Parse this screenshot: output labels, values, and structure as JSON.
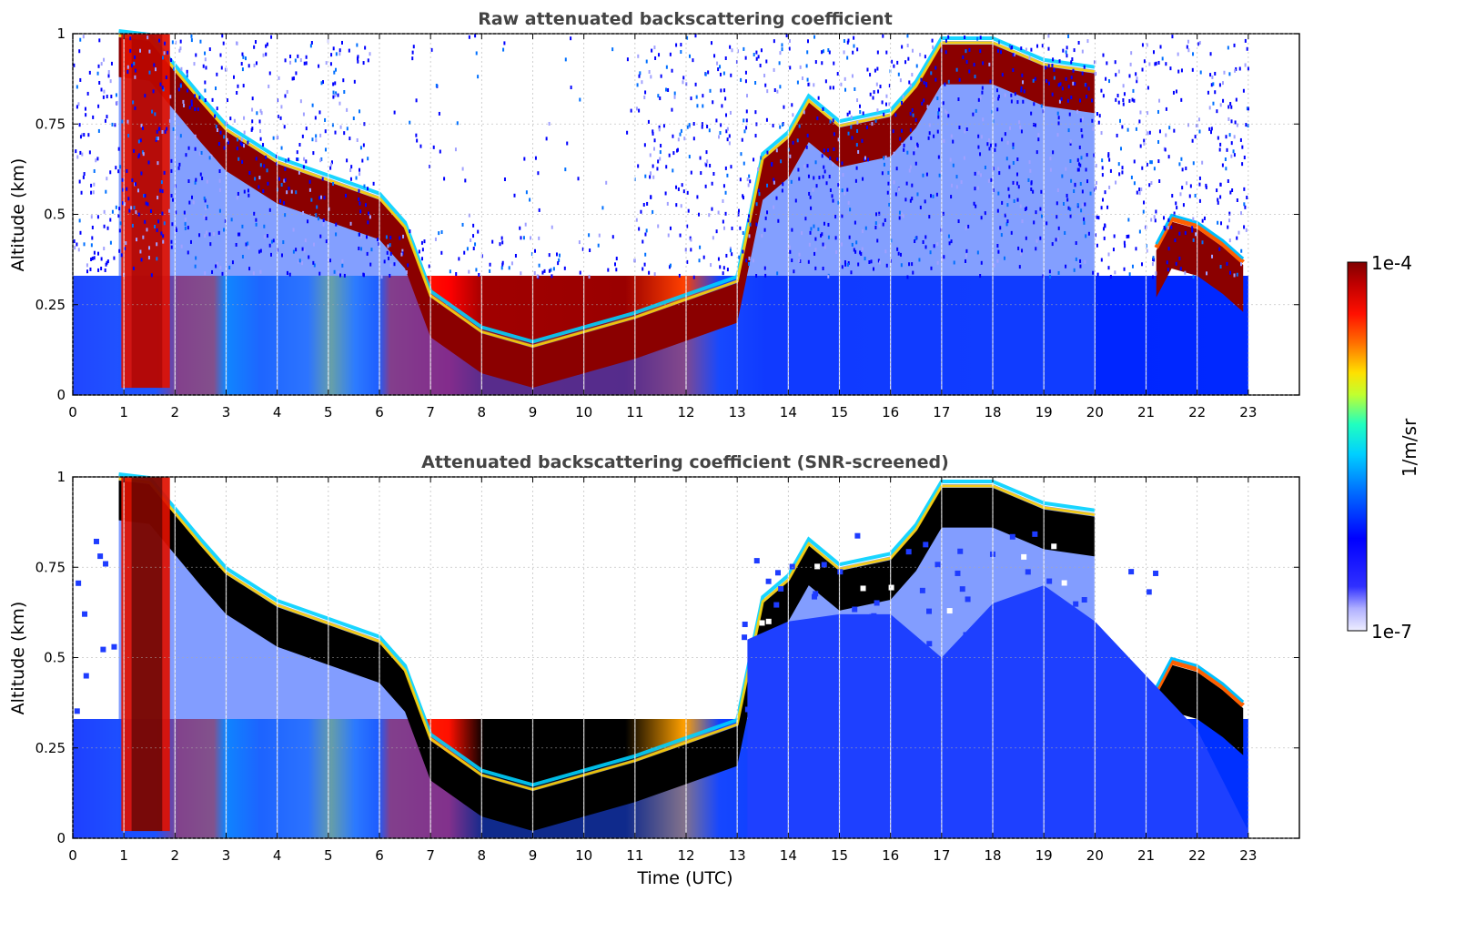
{
  "chart_data": [
    {
      "type": "heatmap",
      "title": "Raw attenuated backscattering coefficient",
      "xlabel": "",
      "ylabel": "Altitude (km)",
      "xlim": [
        0,
        24
      ],
      "ylim": [
        0,
        1
      ],
      "xticks": [
        "0",
        "1",
        "2",
        "3",
        "4",
        "5",
        "6",
        "7",
        "8",
        "9",
        "10",
        "11",
        "12",
        "13",
        "14",
        "15",
        "16",
        "17",
        "18",
        "19",
        "20",
        "21",
        "22",
        "23"
      ],
      "yticks": [
        "0",
        "0.25",
        "0.5",
        "0.75",
        "1"
      ],
      "grid": true,
      "data_end_hour": 23,
      "layer_top_km": [
        {
          "t": 0.9,
          "z": 1.0
        },
        {
          "t": 1.5,
          "z": 0.99
        },
        {
          "t": 2.5,
          "z": 0.82
        },
        {
          "t": 3.0,
          "z": 0.74
        },
        {
          "t": 4.0,
          "z": 0.65
        },
        {
          "t": 5.0,
          "z": 0.6
        },
        {
          "t": 6.0,
          "z": 0.55
        },
        {
          "t": 6.5,
          "z": 0.47
        },
        {
          "t": 7.0,
          "z": 0.28
        },
        {
          "t": 8.0,
          "z": 0.18
        },
        {
          "t": 9.0,
          "z": 0.14
        },
        {
          "t": 10.0,
          "z": 0.18
        },
        {
          "t": 11.0,
          "z": 0.22
        },
        {
          "t": 12.0,
          "z": 0.27
        },
        {
          "t": 13.0,
          "z": 0.32
        },
        {
          "t": 13.5,
          "z": 0.66
        },
        {
          "t": 14.0,
          "z": 0.72
        },
        {
          "t": 14.4,
          "z": 0.82
        },
        {
          "t": 15.0,
          "z": 0.75
        },
        {
          "t": 16.0,
          "z": 0.78
        },
        {
          "t": 16.5,
          "z": 0.86
        },
        {
          "t": 17.0,
          "z": 0.98
        },
        {
          "t": 18.0,
          "z": 0.98
        },
        {
          "t": 19.0,
          "z": 0.92
        },
        {
          "t": 20.0,
          "z": 0.9
        }
      ],
      "evening_layer_km": [
        {
          "t": 21.2,
          "z": 0.4
        },
        {
          "t": 21.5,
          "z": 0.48
        },
        {
          "t": 22.0,
          "z": 0.46
        },
        {
          "t": 22.5,
          "z": 0.41
        },
        {
          "t": 22.9,
          "z": 0.36
        }
      ]
    },
    {
      "type": "heatmap",
      "title": "Attenuated backscattering coefficient (SNR-screened)",
      "xlabel": "Time (UTC)",
      "ylabel": "Altitude (km)",
      "xlim": [
        0,
        24
      ],
      "ylim": [
        0,
        1
      ],
      "xticks": [
        "0",
        "1",
        "2",
        "3",
        "4",
        "5",
        "6",
        "7",
        "8",
        "9",
        "10",
        "11",
        "12",
        "13",
        "14",
        "15",
        "16",
        "17",
        "18",
        "19",
        "20",
        "21",
        "22",
        "23"
      ],
      "yticks": [
        "0",
        "0.25",
        "0.5",
        "0.75",
        "1"
      ],
      "grid": true,
      "data_end_hour": 23
    }
  ],
  "colorbar": {
    "max_label": "1e-4",
    "min_label": "1e-7",
    "unit_label": "1/m/sr",
    "colors": [
      "#e8e8ff",
      "#c8c8ff",
      "#7070ff",
      "#1e1eff",
      "#0000ff",
      "#0050ff",
      "#00a0ff",
      "#00e0e0",
      "#40ffb0",
      "#a0ff50",
      "#ffff00",
      "#ffb000",
      "#ff5000",
      "#ff0000",
      "#c00000",
      "#8b0000"
    ]
  }
}
